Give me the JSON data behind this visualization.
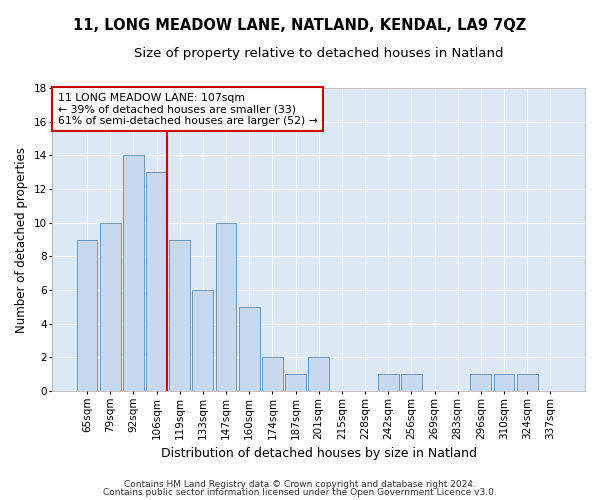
{
  "title1": "11, LONG MEADOW LANE, NATLAND, KENDAL, LA9 7QZ",
  "title2": "Size of property relative to detached houses in Natland",
  "xlabel": "Distribution of detached houses by size in Natland",
  "ylabel": "Number of detached properties",
  "categories": [
    "65sqm",
    "79sqm",
    "92sqm",
    "106sqm",
    "119sqm",
    "133sqm",
    "147sqm",
    "160sqm",
    "174sqm",
    "187sqm",
    "201sqm",
    "215sqm",
    "228sqm",
    "242sqm",
    "256sqm",
    "269sqm",
    "283sqm",
    "296sqm",
    "310sqm",
    "324sqm",
    "337sqm"
  ],
  "values": [
    9,
    10,
    14,
    13,
    9,
    6,
    10,
    5,
    2,
    1,
    2,
    0,
    0,
    1,
    1,
    0,
    0,
    1,
    1,
    1,
    0
  ],
  "bar_color": "#c8d9ed",
  "bar_edgecolor": "#5b8db8",
  "redline_index": 3,
  "annotation_text": "11 LONG MEADOW LANE: 107sqm\n← 39% of detached houses are smaller (33)\n61% of semi-detached houses are larger (52) →",
  "annotation_box_edgecolor": "#cc0000",
  "annotation_box_facecolor": "#ffffff",
  "redline_color": "#cc0000",
  "footer1": "Contains HM Land Registry data © Crown copyright and database right 2024.",
  "footer2": "Contains public sector information licensed under the Open Government Licence v3.0.",
  "ylim": [
    0,
    18
  ],
  "yticks": [
    0,
    2,
    4,
    6,
    8,
    10,
    12,
    14,
    16,
    18
  ],
  "bg_color": "#dce9f5",
  "grid_color": "#ffffff",
  "fig_color": "#ffffff",
  "title1_fontsize": 10.5,
  "title2_fontsize": 9.5,
  "xlabel_fontsize": 9,
  "ylabel_fontsize": 8.5,
  "tick_fontsize": 7.5,
  "footer_fontsize": 6.5
}
